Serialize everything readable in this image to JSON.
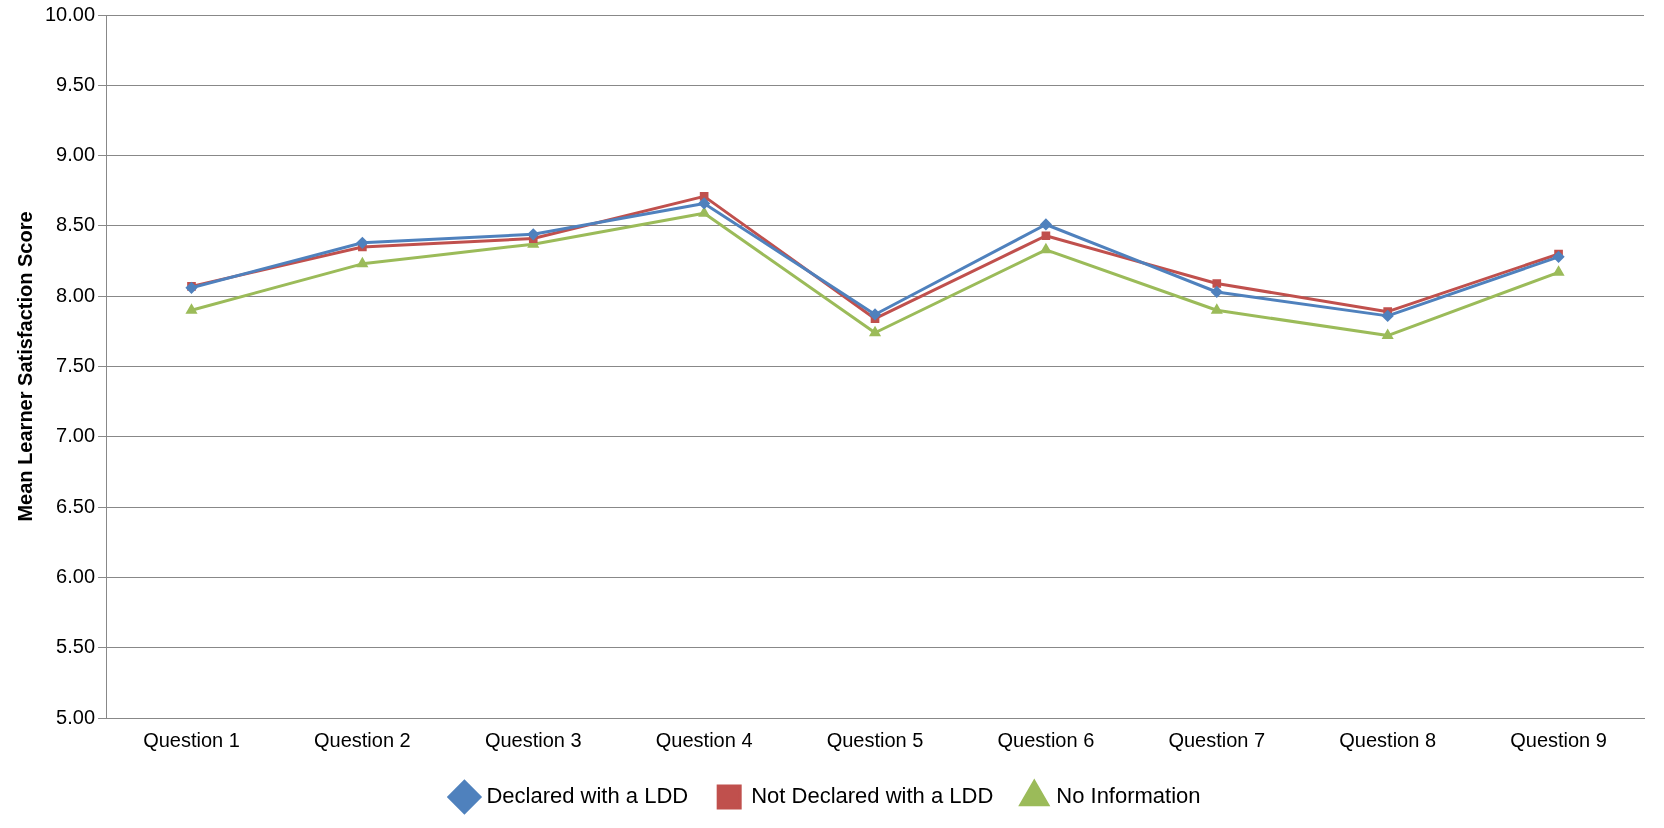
{
  "chart_data": {
    "type": "line",
    "ylabel": "Mean Learner Satisfaction Score",
    "categories": [
      "Question 1",
      "Question 2",
      "Question 3",
      "Question 4",
      "Question 5",
      "Question 6",
      "Question 7",
      "Question 8",
      "Question 9"
    ],
    "series": [
      {
        "name": "Declared with a LDD",
        "color": "#4f81bd",
        "marker": "diamond",
        "values": [
          8.06,
          8.38,
          8.44,
          8.66,
          7.87,
          8.51,
          8.03,
          7.86,
          8.28
        ]
      },
      {
        "name": "Not Declared with a LDD",
        "color": "#c0504d",
        "marker": "square",
        "values": [
          8.07,
          8.35,
          8.41,
          8.71,
          7.84,
          8.43,
          8.09,
          7.89,
          8.3
        ]
      },
      {
        "name": "No Information",
        "color": "#9bbb59",
        "marker": "triangle",
        "values": [
          7.9,
          8.23,
          8.37,
          8.59,
          7.74,
          8.33,
          7.9,
          7.72,
          8.17
        ]
      }
    ],
    "ylim": [
      5,
      10
    ],
    "yticks": [
      {
        "value": 5,
        "label": "5.00"
      },
      {
        "value": 5.5,
        "label": "5.50"
      },
      {
        "value": 6,
        "label": "6.00"
      },
      {
        "value": 6.5,
        "label": "6.50"
      },
      {
        "value": 7,
        "label": "7.00"
      },
      {
        "value": 7.5,
        "label": "7.50"
      },
      {
        "value": 8,
        "label": "8.00"
      },
      {
        "value": 8.5,
        "label": "8.50"
      },
      {
        "value": 9,
        "label": "9.00"
      },
      {
        "value": 9.5,
        "label": "9.50"
      },
      {
        "value": 10,
        "label": "10.00"
      }
    ],
    "grid": "y",
    "legend": "bottom",
    "line_style": "solid"
  }
}
